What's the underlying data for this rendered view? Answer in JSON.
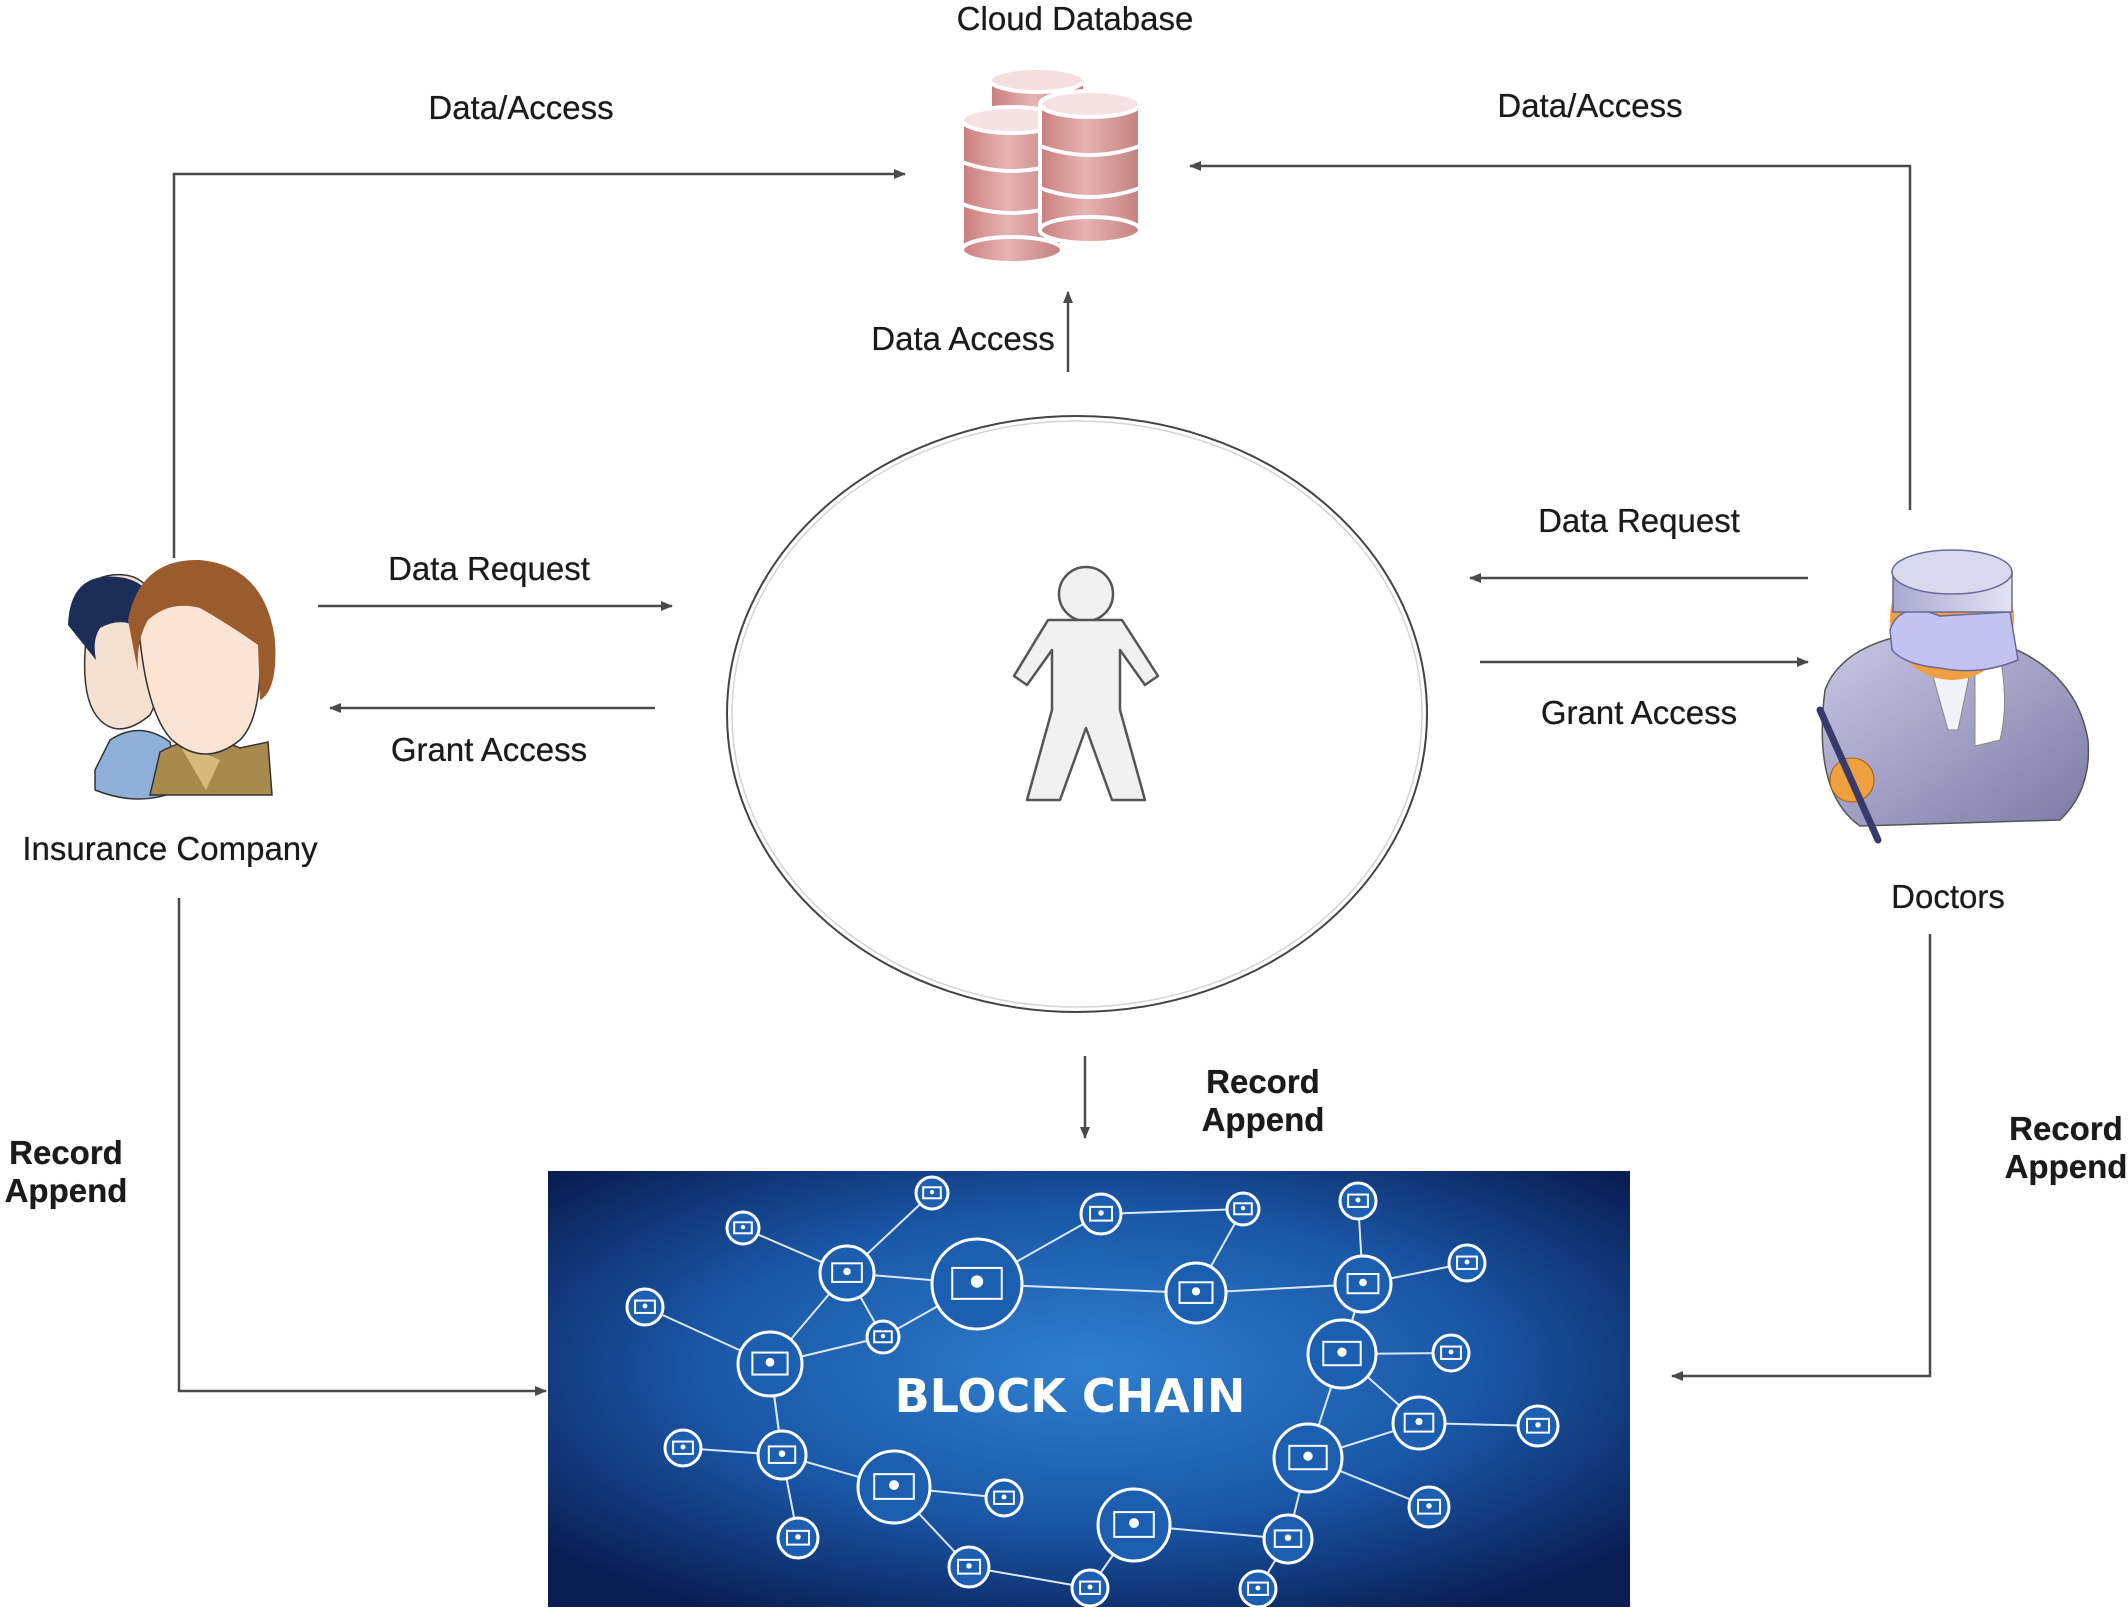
{
  "nodes": {
    "cloud": {
      "title": "Cloud Database"
    },
    "insurance": {
      "title": "Insurance Company"
    },
    "doctors": {
      "title": "Doctors"
    },
    "blockchain": {
      "title": "BLOCK CHAIN"
    }
  },
  "edges": {
    "insurance_to_cloud": "Data/Access",
    "doctors_to_cloud": "Data/Access",
    "patient_to_cloud": "Data Access",
    "insurance_data_request": "Data Request",
    "insurance_grant_access": "Grant Access",
    "doctors_data_request": "Data Request",
    "doctors_grant_access": "Grant Access",
    "insurance_record_append": [
      "Record",
      "Append"
    ],
    "patient_record_append": [
      "Record",
      "Append"
    ],
    "doctors_record_append": [
      "Record",
      "Append"
    ]
  },
  "colors": {
    "arrow": "#4a4a4a",
    "database": "#d79494",
    "blockchain_bg": "#1a57a7",
    "blockchain_dark": "#0a1e54"
  }
}
